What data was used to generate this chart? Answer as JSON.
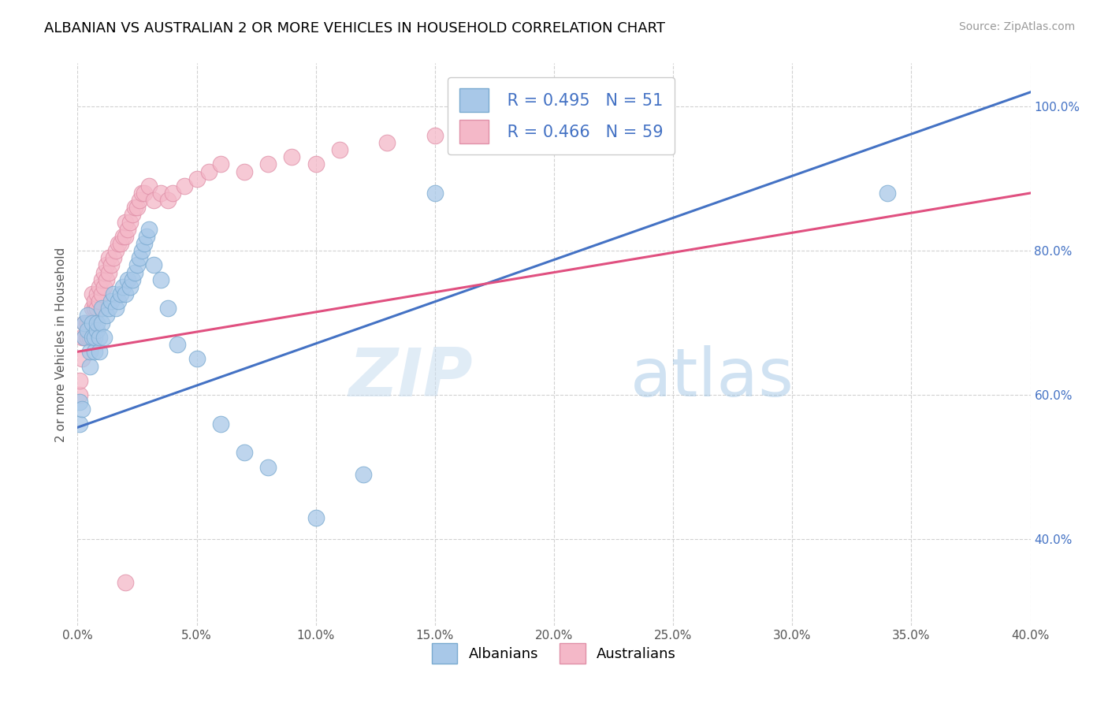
{
  "title": "ALBANIAN VS AUSTRALIAN 2 OR MORE VEHICLES IN HOUSEHOLD CORRELATION CHART",
  "source": "Source: ZipAtlas.com",
  "ylabel": "2 or more Vehicles in Household",
  "legend_label1": "Albanians",
  "legend_label2": "Australians",
  "r1": 0.495,
  "n1": 51,
  "r2": 0.466,
  "n2": 59,
  "color_blue": "#a8c8e8",
  "color_pink": "#f4b8c8",
  "color_blue_line": "#4472c4",
  "color_pink_line": "#e05080",
  "color_blue_edge": "#7aaad0",
  "color_pink_edge": "#e090a8",
  "xlim": [
    0.0,
    0.4
  ],
  "ylim": [
    0.28,
    1.06
  ],
  "xticks": [
    0.0,
    0.05,
    0.1,
    0.15,
    0.2,
    0.25,
    0.3,
    0.35,
    0.4
  ],
  "yticks": [
    0.4,
    0.6,
    0.8,
    1.0
  ],
  "watermark_zip": "ZIP",
  "watermark_atlas": "atlas",
  "albanians_x": [
    0.001,
    0.001,
    0.002,
    0.003,
    0.003,
    0.004,
    0.004,
    0.005,
    0.005,
    0.006,
    0.006,
    0.007,
    0.007,
    0.008,
    0.008,
    0.009,
    0.009,
    0.01,
    0.01,
    0.011,
    0.012,
    0.013,
    0.014,
    0.015,
    0.016,
    0.017,
    0.018,
    0.019,
    0.02,
    0.021,
    0.022,
    0.023,
    0.024,
    0.025,
    0.026,
    0.027,
    0.028,
    0.029,
    0.03,
    0.032,
    0.035,
    0.038,
    0.042,
    0.05,
    0.06,
    0.07,
    0.08,
    0.1,
    0.12,
    0.15,
    0.34
  ],
  "albanians_y": [
    0.59,
    0.56,
    0.58,
    0.68,
    0.7,
    0.69,
    0.71,
    0.64,
    0.66,
    0.68,
    0.7,
    0.66,
    0.68,
    0.69,
    0.7,
    0.66,
    0.68,
    0.7,
    0.72,
    0.68,
    0.71,
    0.72,
    0.73,
    0.74,
    0.72,
    0.73,
    0.74,
    0.75,
    0.74,
    0.76,
    0.75,
    0.76,
    0.77,
    0.78,
    0.79,
    0.8,
    0.81,
    0.82,
    0.83,
    0.78,
    0.76,
    0.72,
    0.67,
    0.65,
    0.56,
    0.52,
    0.5,
    0.43,
    0.49,
    0.88,
    0.88
  ],
  "australians_x": [
    0.001,
    0.001,
    0.002,
    0.002,
    0.003,
    0.003,
    0.004,
    0.004,
    0.005,
    0.005,
    0.006,
    0.006,
    0.007,
    0.007,
    0.008,
    0.008,
    0.009,
    0.009,
    0.01,
    0.01,
    0.011,
    0.011,
    0.012,
    0.012,
    0.013,
    0.013,
    0.014,
    0.015,
    0.016,
    0.017,
    0.018,
    0.019,
    0.02,
    0.02,
    0.021,
    0.022,
    0.023,
    0.024,
    0.025,
    0.026,
    0.027,
    0.028,
    0.03,
    0.032,
    0.035,
    0.038,
    0.04,
    0.045,
    0.05,
    0.055,
    0.06,
    0.07,
    0.08,
    0.09,
    0.1,
    0.11,
    0.13,
    0.15,
    0.02
  ],
  "australians_y": [
    0.6,
    0.62,
    0.65,
    0.68,
    0.68,
    0.7,
    0.68,
    0.7,
    0.68,
    0.7,
    0.72,
    0.74,
    0.72,
    0.73,
    0.72,
    0.74,
    0.73,
    0.75,
    0.74,
    0.76,
    0.75,
    0.77,
    0.76,
    0.78,
    0.77,
    0.79,
    0.78,
    0.79,
    0.8,
    0.81,
    0.81,
    0.82,
    0.82,
    0.84,
    0.83,
    0.84,
    0.85,
    0.86,
    0.86,
    0.87,
    0.88,
    0.88,
    0.89,
    0.87,
    0.88,
    0.87,
    0.88,
    0.89,
    0.9,
    0.91,
    0.92,
    0.91,
    0.92,
    0.93,
    0.92,
    0.94,
    0.95,
    0.96,
    0.34
  ],
  "blue_line_x0": 0.0,
  "blue_line_y0": 0.555,
  "blue_line_x1": 0.4,
  "blue_line_y1": 1.02,
  "pink_line_x0": 0.0,
  "pink_line_y0": 0.66,
  "pink_line_x1": 0.4,
  "pink_line_y1": 0.88
}
